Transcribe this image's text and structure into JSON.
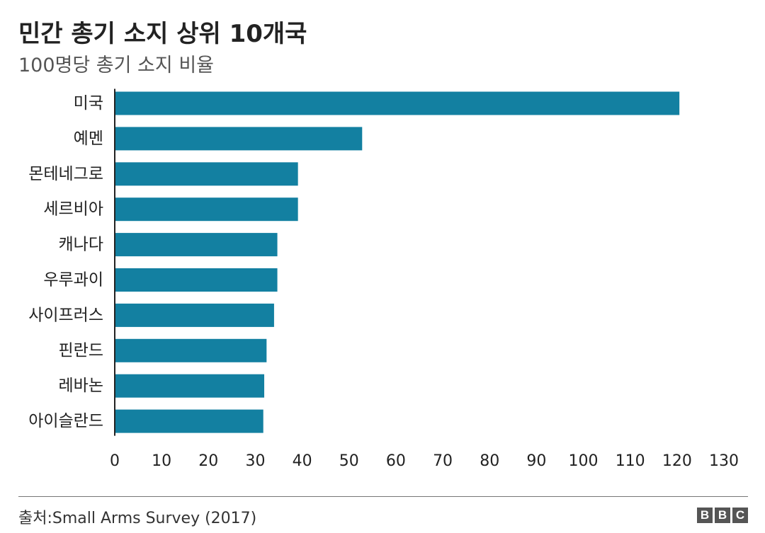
{
  "chart_data": {
    "type": "bar",
    "orientation": "horizontal",
    "title": "민간 총기 소지 상위 10개국",
    "subtitle": "100명당 총기 소지 비율",
    "categories": [
      "미국",
      "예멘",
      "몬테네그로",
      "세르비아",
      "캐나다",
      "우루과이",
      "사이프러스",
      "핀란드",
      "레바논",
      "아이슬란드"
    ],
    "values": [
      120.5,
      52.8,
      39.1,
      39.1,
      34.7,
      34.7,
      34.0,
      32.4,
      31.9,
      31.7
    ],
    "xlim": [
      0,
      130
    ],
    "xticks": [
      0,
      10,
      20,
      30,
      40,
      50,
      60,
      70,
      80,
      90,
      100,
      110,
      120,
      130
    ],
    "xlabel": "",
    "ylabel": "",
    "grid": false,
    "bar_color": "#1380A1"
  },
  "footer": {
    "source": "출처:Small Arms Survey (2017)",
    "logo_letters": [
      "B",
      "B",
      "C"
    ]
  }
}
